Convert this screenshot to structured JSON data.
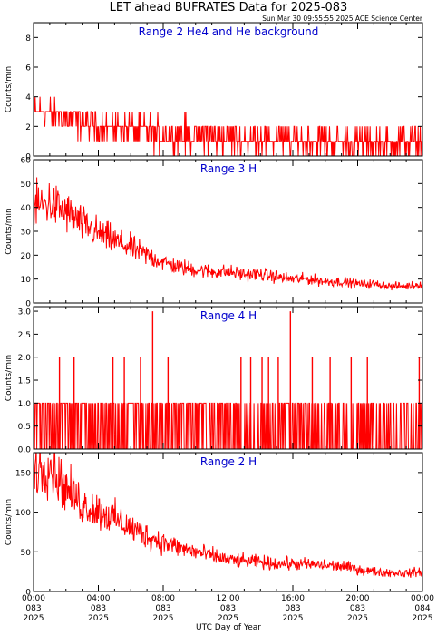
{
  "title": "LET ahead BUFRATES Data for 2025-083",
  "timestamp": "Sun Mar 30 09:55:55 2025 ACE Science Center",
  "xlabel": "UTC Day of Year",
  "colors": {
    "series": "#ff0000",
    "panel_title": "#0000cc"
  },
  "chart_data": [
    {
      "type": "line",
      "title": "Range 2 He4 and He background",
      "ylabel": "Counts/min",
      "ylim": [
        0,
        9
      ],
      "yticks": [
        0,
        2,
        4,
        6,
        8
      ],
      "x_hours": [
        0,
        1,
        2,
        3,
        4,
        5,
        6,
        7,
        8,
        9,
        10,
        11,
        12,
        13,
        14,
        15,
        16,
        17,
        18,
        19,
        20,
        21,
        22,
        23,
        24
      ],
      "values": [
        3.2,
        2.8,
        2.6,
        2.4,
        2.0,
        1.9,
        1.8,
        1.6,
        1.4,
        1.4,
        1.3,
        1.3,
        1.2,
        1.2,
        1.1,
        1.1,
        1.0,
        1.0,
        1.0,
        0.9,
        0.9,
        0.9,
        0.9,
        0.9,
        0.9
      ]
    },
    {
      "type": "line",
      "title": "Range 3 H",
      "ylabel": "Counts/min",
      "ylim": [
        0,
        60
      ],
      "yticks": [
        0,
        10,
        20,
        30,
        40,
        50,
        60
      ],
      "x_hours": [
        0,
        1,
        2,
        3,
        4,
        5,
        6,
        7,
        8,
        9,
        10,
        11,
        12,
        13,
        14,
        15,
        16,
        17,
        18,
        19,
        20,
        21,
        22,
        23,
        24
      ],
      "values": [
        40,
        42,
        38,
        33,
        29,
        26,
        23,
        20,
        17,
        15,
        14,
        13,
        13,
        12,
        12,
        11,
        10,
        10,
        9,
        9,
        8,
        8,
        7,
        7,
        8
      ]
    },
    {
      "type": "line",
      "title": "Range 4 H",
      "ylabel": "Counts/min",
      "ylim": [
        0,
        3.1
      ],
      "yticks": [
        "0.0",
        "0.5",
        "1.0",
        "1.5",
        "2.0",
        "2.5",
        "3.0"
      ],
      "x_hours": [
        0,
        1,
        2,
        3,
        4,
        5,
        6,
        7,
        8,
        9,
        10,
        11,
        12,
        13,
        14,
        15,
        16,
        17,
        18,
        19,
        20,
        21,
        22,
        23,
        24
      ],
      "values": [
        0.6,
        0.6,
        0.5,
        0.5,
        0.5,
        0.5,
        0.5,
        0.4,
        0.5,
        0.5,
        0.5,
        0.4,
        0.5,
        0.4,
        0.4,
        0.4,
        0.5,
        0.4,
        0.4,
        0.4,
        0.4,
        0.4,
        0.4,
        0.4,
        0.4
      ],
      "spikes": [
        [
          7.35,
          3
        ],
        [
          15.85,
          3
        ],
        [
          1.6,
          2
        ],
        [
          2.5,
          2
        ],
        [
          4.9,
          2
        ],
        [
          5.6,
          2
        ],
        [
          6.6,
          2
        ],
        [
          8.3,
          2
        ],
        [
          12.8,
          2
        ],
        [
          13.4,
          2
        ],
        [
          14.1,
          2
        ],
        [
          14.5,
          2
        ],
        [
          15.1,
          2
        ],
        [
          17.2,
          2
        ],
        [
          18.3,
          2
        ],
        [
          19.6,
          2
        ],
        [
          20.6,
          2
        ],
        [
          23.8,
          2
        ]
      ]
    },
    {
      "type": "line",
      "title": "Range 2 H",
      "ylabel": "Counts/min",
      "ylim": [
        0,
        175
      ],
      "yticks": [
        0,
        50,
        100,
        150
      ],
      "x_hours": [
        0,
        1,
        2,
        3,
        4,
        5,
        6,
        7,
        8,
        9,
        10,
        11,
        12,
        13,
        14,
        15,
        16,
        17,
        18,
        19,
        20,
        21,
        22,
        23,
        24
      ],
      "values": [
        155,
        160,
        130,
        110,
        102,
        92,
        80,
        70,
        62,
        55,
        50,
        45,
        40,
        38,
        37,
        35,
        35,
        34,
        33,
        32,
        28,
        25,
        24,
        23,
        25
      ]
    }
  ],
  "x_ticks": [
    {
      "time": "00:00",
      "day": "083",
      "year": "2025"
    },
    {
      "time": "04:00",
      "day": "083",
      "year": "2025"
    },
    {
      "time": "08:00",
      "day": "083",
      "year": "2025"
    },
    {
      "time": "12:00",
      "day": "083",
      "year": "2025"
    },
    {
      "time": "16:00",
      "day": "083",
      "year": "2025"
    },
    {
      "time": "20:00",
      "day": "083",
      "year": "2025"
    },
    {
      "time": "00:00",
      "day": "084",
      "year": "2025"
    }
  ]
}
